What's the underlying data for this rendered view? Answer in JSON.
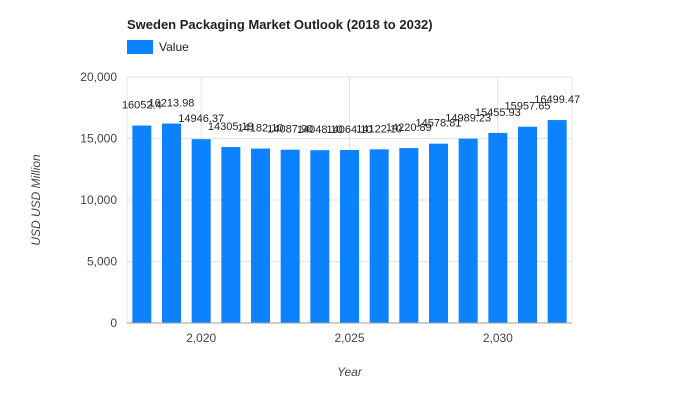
{
  "colors": {
    "bar": "#0d82ff",
    "grid": "#e4e4e4",
    "axis": "#9e9e9e",
    "text": "#444444"
  },
  "chart_data": {
    "type": "bar",
    "title": "Sweden Packaging Market Outlook (2018 to 2032)",
    "xlabel": "Year",
    "ylabel": "USD USD Million",
    "legend": {
      "position": "top-left",
      "entries": [
        "Value"
      ]
    },
    "grid": true,
    "ylim": [
      0,
      20000
    ],
    "yticks": [
      0,
      5000,
      10000,
      15000,
      20000
    ],
    "ytick_labels": [
      "0",
      "5,000",
      "10,000",
      "15,000",
      "20,000"
    ],
    "xticks": [
      2020,
      2025,
      2030
    ],
    "xtick_labels": [
      "2,020",
      "2,025",
      "2,030"
    ],
    "x": [
      2018,
      2019,
      2020,
      2021,
      2022,
      2023,
      2024,
      2025,
      2026,
      2027,
      2028,
      2029,
      2030,
      2031,
      2032
    ],
    "series": [
      {
        "name": "Value",
        "values": [
          16052.4,
          16213.98,
          14946.37,
          14305.19,
          14182.1,
          14087.9,
          14048.1,
          14064.1,
          14122.1,
          14220.89,
          14578.81,
          14989.23,
          15455.93,
          15957.65,
          16499.47
        ],
        "labels": [
          "16052.4",
          "16213.98",
          "14946.37",
          "14305.19",
          "14182.10",
          "14087.90",
          "14048.10",
          "14064.10",
          "14122.10",
          "14220.89",
          "14578.81",
          "14989.23",
          "15455.93",
          "15957.65",
          "16499.47"
        ]
      }
    ]
  }
}
